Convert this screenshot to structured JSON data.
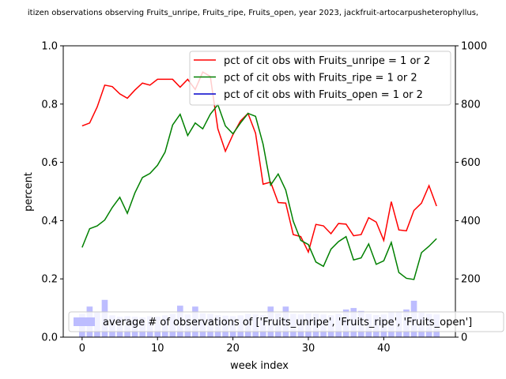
{
  "chart_data": {
    "type": "line",
    "title": "itizen observations observing Fruits_unripe, Fruits_ripe, Fruits_open, year 2023, jackfruit-artocarpusheterophyllus,",
    "xlabel": "week index",
    "ylabel": "percent",
    "xlim": [
      -2.5,
      49.5
    ],
    "ylim": [
      0,
      1.0
    ],
    "y2lim": [
      0,
      1000
    ],
    "xticks": [
      0,
      10,
      20,
      30,
      40
    ],
    "yticks": [
      0.0,
      0.2,
      0.4,
      0.6,
      0.8,
      1.0
    ],
    "y2ticks": [
      0,
      200,
      400,
      600,
      800,
      1000
    ],
    "legend_position": "top-right",
    "bar_legend_position": "lower-center",
    "series": [
      {
        "name": "pct of cit obs with Fruits_unripe = 1 or 2",
        "color": "#ff0000",
        "axis": "left",
        "x": [
          0,
          1,
          2,
          3,
          4,
          5,
          6,
          7,
          8,
          9,
          10,
          11,
          12,
          13,
          14,
          15,
          16,
          17,
          18,
          19,
          20,
          21,
          22,
          23,
          24,
          25,
          26,
          27,
          28,
          29,
          30,
          31,
          32,
          33,
          34,
          35,
          36,
          37,
          38,
          39,
          40,
          41,
          42,
          43,
          44,
          45,
          46,
          47
        ],
        "values": [
          0.725,
          0.735,
          0.79,
          0.865,
          0.86,
          0.835,
          0.82,
          0.848,
          0.872,
          0.865,
          0.885,
          0.885,
          0.885,
          0.858,
          0.885,
          0.85,
          0.91,
          0.895,
          0.715,
          0.638,
          0.695,
          0.742,
          0.768,
          0.7,
          0.525,
          0.532,
          0.462,
          0.46,
          0.352,
          0.345,
          0.292,
          0.387,
          0.382,
          0.355,
          0.39,
          0.388,
          0.348,
          0.352,
          0.41,
          0.395,
          0.332,
          0.465,
          0.368,
          0.365,
          0.435,
          0.46,
          0.52,
          0.45
        ]
      },
      {
        "name": "pct of cit obs with Fruits_ripe = 1 or 2",
        "color": "#008000",
        "axis": "left",
        "x": [
          0,
          1,
          2,
          3,
          4,
          5,
          6,
          7,
          8,
          9,
          10,
          11,
          12,
          13,
          14,
          15,
          16,
          17,
          18,
          19,
          20,
          21,
          22,
          23,
          24,
          25,
          26,
          27,
          28,
          29,
          30,
          31,
          32,
          33,
          34,
          35,
          36,
          37,
          38,
          39,
          40,
          41,
          42,
          43,
          44,
          45,
          46,
          47
        ],
        "values": [
          0.308,
          0.372,
          0.382,
          0.402,
          0.445,
          0.48,
          0.425,
          0.495,
          0.548,
          0.562,
          0.59,
          0.635,
          0.728,
          0.765,
          0.692,
          0.735,
          0.715,
          0.765,
          0.798,
          0.725,
          0.698,
          0.735,
          0.768,
          0.758,
          0.662,
          0.522,
          0.56,
          0.505,
          0.398,
          0.332,
          0.318,
          0.258,
          0.243,
          0.302,
          0.328,
          0.345,
          0.265,
          0.272,
          0.32,
          0.25,
          0.262,
          0.325,
          0.222,
          0.202,
          0.198,
          0.29,
          0.312,
          0.338
        ]
      },
      {
        "name": "pct of cit obs with Fruits_open = 1 or 2",
        "color": "#0000cc",
        "axis": "left",
        "x": [],
        "values": []
      }
    ],
    "bars": {
      "name": "average # of observations of ['Fruits_unripe', 'Fruits_ripe', 'Fruits_open']",
      "color": "#bdbdff",
      "axis": "right",
      "x": [
        0,
        1,
        2,
        3,
        4,
        5,
        6,
        7,
        8,
        9,
        10,
        11,
        12,
        13,
        14,
        15,
        16,
        17,
        18,
        19,
        20,
        21,
        22,
        23,
        24,
        25,
        26,
        27,
        28,
        29,
        30,
        31,
        32,
        33,
        34,
        35,
        36,
        37,
        38,
        39,
        40,
        41,
        42,
        43,
        44,
        45,
        46,
        47
      ],
      "values": [
        80,
        105,
        85,
        128,
        75,
        70,
        72,
        70,
        68,
        72,
        70,
        75,
        80,
        108,
        78,
        105,
        82,
        80,
        75,
        74,
        72,
        75,
        80,
        78,
        76,
        105,
        82,
        105,
        80,
        78,
        82,
        80,
        78,
        75,
        80,
        95,
        100,
        90,
        80,
        76,
        78,
        85,
        88,
        95,
        125,
        84,
        80,
        78
      ]
    }
  }
}
